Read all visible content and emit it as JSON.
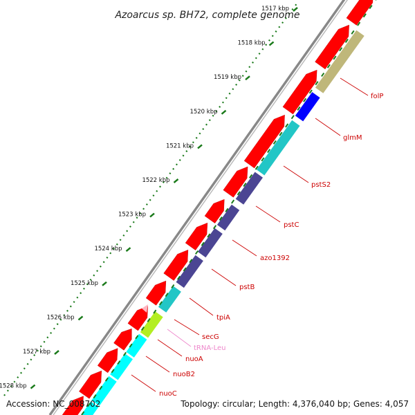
{
  "title": "Azoarcus sp. BH72, complete genome",
  "accession": "Accession: NC_008702",
  "topology": "Topology: circular; Length: 4,376,040 bp; Genes: 4,057",
  "kbp_labels": [
    "1517 kbp",
    "1518 kbp",
    "1519 kbp",
    "1520 kbp",
    "1521 kbp",
    "1522 kbp",
    "1523 kbp",
    "1524 kbp",
    "1525 kbp",
    "1526 kbp",
    "1527 kbp",
    "1528 kbp"
  ],
  "genes": [
    {
      "name": "folP",
      "color": "#cc0000"
    },
    {
      "name": "glmM",
      "color": "#cc0000"
    },
    {
      "name": "pstS2",
      "color": "#cc0000"
    },
    {
      "name": "pstC",
      "color": "#cc0000"
    },
    {
      "name": "azo1392",
      "color": "#cc0000"
    },
    {
      "name": "pstB",
      "color": "#cc0000"
    },
    {
      "name": "tpiA",
      "color": "#cc0000"
    },
    {
      "name": "secG",
      "color": "#cc0000"
    },
    {
      "name": "tRNA-Leu",
      "color": "#ee88cc"
    },
    {
      "name": "nuoA",
      "color": "#cc0000"
    },
    {
      "name": "nuoB2",
      "color": "#cc0000"
    },
    {
      "name": "nuoC",
      "color": "#cc0000"
    }
  ],
  "colors": {
    "cds_forward": "#ff0000",
    "backbone": "#888888",
    "tick": "#1a7a1a",
    "cog_olive": "#bfb77a",
    "cog_blue": "#0000ff",
    "cog_cyan": "#22c6c6",
    "cog_purple": "#4b4593",
    "cog_lime": "#b3ee22",
    "cog_cyan_bright": "#00ffff",
    "trna": "#ffb6c1"
  }
}
